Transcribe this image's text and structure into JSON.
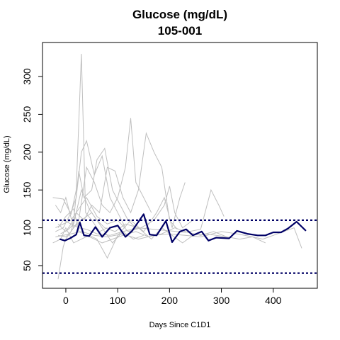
{
  "chart_data": {
    "type": "line",
    "title": "Glucose (mg/dL)",
    "subtitle": "105-001",
    "xlabel": "Days Since C1D1",
    "ylabel": "Glucose (mg/dL)",
    "xlim": [
      -45,
      485
    ],
    "ylim": [
      20,
      345
    ],
    "x_ticks": [
      0,
      100,
      200,
      300,
      400
    ],
    "y_ticks": [
      50,
      100,
      150,
      200,
      250,
      300
    ],
    "x_tick_labels": [
      "0",
      "100",
      "200",
      "300",
      "400"
    ],
    "y_tick_labels": [
      "50",
      "100",
      "150",
      "200",
      "250",
      "300"
    ],
    "reference_lines": [
      110,
      40
    ],
    "colors": {
      "highlight": "#000066",
      "background_series": "#bfbfbf",
      "reference": "#000066"
    },
    "highlight_series": {
      "name": "105-001",
      "points": [
        [
          -12,
          85
        ],
        [
          -2,
          83
        ],
        [
          8,
          86
        ],
        [
          20,
          91
        ],
        [
          27,
          107
        ],
        [
          35,
          90
        ],
        [
          45,
          89
        ],
        [
          57,
          101
        ],
        [
          70,
          88
        ],
        [
          85,
          100
        ],
        [
          100,
          103
        ],
        [
          115,
          88
        ],
        [
          128,
          96
        ],
        [
          135,
          103
        ],
        [
          150,
          118
        ],
        [
          162,
          91
        ],
        [
          175,
          90
        ],
        [
          193,
          109
        ],
        [
          205,
          81
        ],
        [
          220,
          95
        ],
        [
          232,
          98
        ],
        [
          245,
          90
        ],
        [
          262,
          95
        ],
        [
          275,
          83
        ],
        [
          290,
          87
        ],
        [
          315,
          86
        ],
        [
          330,
          96
        ],
        [
          350,
          92
        ],
        [
          370,
          90
        ],
        [
          385,
          90
        ],
        [
          400,
          94
        ],
        [
          415,
          94
        ],
        [
          428,
          99
        ],
        [
          445,
          108
        ],
        [
          463,
          96
        ]
      ]
    },
    "background_series": [
      {
        "points": [
          [
            -25,
            140
          ],
          [
            -5,
            138
          ],
          [
            10,
            118
          ],
          [
            20,
            150
          ],
          [
            30,
            330
          ],
          [
            38,
            120
          ],
          [
            50,
            110
          ],
          [
            65,
            95
          ],
          [
            80,
            100
          ]
        ]
      },
      {
        "points": [
          [
            -20,
            95
          ],
          [
            -5,
            100
          ],
          [
            10,
            120
          ],
          [
            20,
            140
          ],
          [
            30,
            200
          ],
          [
            40,
            215
          ],
          [
            55,
            170
          ],
          [
            70,
            195
          ],
          [
            85,
            140
          ],
          [
            100,
            120
          ],
          [
            115,
            100
          ]
        ]
      },
      {
        "points": [
          [
            -15,
            105
          ],
          [
            0,
            95
          ],
          [
            15,
            110
          ],
          [
            25,
            175
          ],
          [
            35,
            140
          ],
          [
            50,
            150
          ],
          [
            60,
            190
          ],
          [
            75,
            205
          ],
          [
            90,
            150
          ],
          [
            105,
            130
          ],
          [
            120,
            110
          ],
          [
            135,
            100
          ]
        ]
      },
      {
        "points": [
          [
            -20,
            130
          ],
          [
            -10,
            120
          ],
          [
            0,
            140
          ],
          [
            15,
            100
          ],
          [
            25,
            110
          ],
          [
            40,
            180
          ],
          [
            55,
            160
          ],
          [
            70,
            130
          ],
          [
            85,
            120
          ],
          [
            100,
            140
          ],
          [
            115,
            180
          ],
          [
            125,
            245
          ],
          [
            135,
            160
          ],
          [
            150,
            140
          ],
          [
            165,
            120
          ]
        ]
      },
      {
        "points": [
          [
            -15,
            90
          ],
          [
            0,
            88
          ],
          [
            10,
            95
          ],
          [
            20,
            120
          ],
          [
            35,
            110
          ],
          [
            50,
            130
          ],
          [
            65,
            120
          ],
          [
            80,
            180
          ],
          [
            95,
            175
          ],
          [
            110,
            140
          ],
          [
            125,
            120
          ],
          [
            140,
            150
          ],
          [
            155,
            225
          ],
          [
            170,
            200
          ],
          [
            185,
            180
          ],
          [
            200,
            110
          ],
          [
            215,
            98
          ]
        ]
      },
      {
        "points": [
          [
            -25,
            80
          ],
          [
            -10,
            85
          ],
          [
            0,
            100
          ],
          [
            15,
            80
          ],
          [
            30,
            85
          ],
          [
            45,
            90
          ],
          [
            60,
            85
          ],
          [
            80,
            60
          ],
          [
            100,
            90
          ],
          [
            125,
            110
          ],
          [
            150,
            95
          ],
          [
            175,
            120
          ],
          [
            190,
            140
          ],
          [
            205,
            100
          ],
          [
            220,
            140
          ],
          [
            230,
            160
          ]
        ]
      },
      {
        "points": [
          [
            -15,
            32
          ],
          [
            -5,
            75
          ],
          [
            0,
            85
          ],
          [
            15,
            100
          ],
          [
            30,
            110
          ],
          [
            50,
            120
          ],
          [
            70,
            100
          ],
          [
            90,
            80
          ],
          [
            110,
            95
          ],
          [
            130,
            85
          ],
          [
            150,
            90
          ]
        ]
      },
      {
        "points": [
          [
            -20,
            100
          ],
          [
            -5,
            105
          ],
          [
            10,
            110
          ],
          [
            25,
            125
          ],
          [
            40,
            140
          ],
          [
            60,
            115
          ],
          [
            80,
            105
          ],
          [
            100,
            110
          ],
          [
            120,
            95
          ],
          [
            145,
            100
          ],
          [
            170,
            110
          ],
          [
            190,
            130
          ],
          [
            200,
            155
          ],
          [
            210,
            120
          ],
          [
            225,
            100
          ],
          [
            245,
            110
          ]
        ]
      },
      {
        "points": [
          [
            -10,
            92
          ],
          [
            5,
            98
          ],
          [
            15,
            105
          ],
          [
            30,
            150
          ],
          [
            45,
            125
          ],
          [
            60,
            110
          ],
          [
            75,
            100
          ],
          [
            95,
            95
          ],
          [
            115,
            105
          ],
          [
            140,
            100
          ],
          [
            165,
            85
          ],
          [
            185,
            100
          ],
          [
            205,
            90
          ],
          [
            225,
            80
          ],
          [
            245,
            90
          ],
          [
            270,
            92
          ],
          [
            290,
            90
          ],
          [
            310,
            88
          ]
        ]
      },
      {
        "points": [
          [
            -5,
            110
          ],
          [
            10,
            105
          ],
          [
            25,
            100
          ],
          [
            40,
            98
          ],
          [
            60,
            92
          ],
          [
            85,
            90
          ],
          [
            110,
            95
          ],
          [
            140,
            100
          ],
          [
            170,
            98
          ],
          [
            200,
            96
          ],
          [
            230,
            94
          ],
          [
            260,
            98
          ],
          [
            280,
            150
          ],
          [
            295,
            130
          ],
          [
            305,
            115
          ]
        ]
      },
      {
        "points": [
          [
            -20,
            88
          ],
          [
            -5,
            90
          ],
          [
            10,
            92
          ],
          [
            30,
            95
          ],
          [
            55,
            90
          ],
          [
            80,
            88
          ],
          [
            110,
            92
          ],
          [
            140,
            85
          ],
          [
            170,
            90
          ],
          [
            200,
            92
          ],
          [
            230,
            90
          ],
          [
            260,
            88
          ],
          [
            300,
            95
          ],
          [
            330,
            92
          ],
          [
            360,
            88
          ],
          [
            380,
            85
          ],
          [
            400,
            90
          ],
          [
            420,
            95
          ],
          [
            440,
            100
          ],
          [
            455,
            73
          ]
        ]
      },
      {
        "points": [
          [
            -15,
            100
          ],
          [
            0,
            115
          ],
          [
            15,
            125
          ],
          [
            25,
            95
          ],
          [
            40,
            90
          ],
          [
            55,
            85
          ],
          [
            70,
            80
          ],
          [
            90,
            85
          ],
          [
            110,
            90
          ],
          [
            135,
            95
          ],
          [
            160,
            88
          ],
          [
            185,
            92
          ],
          [
            210,
            100
          ],
          [
            235,
            94
          ],
          [
            260,
            90
          ],
          [
            285,
            95
          ],
          [
            310,
            88
          ],
          [
            335,
            85
          ],
          [
            360,
            88
          ],
          [
            385,
            80
          ]
        ]
      }
    ]
  }
}
